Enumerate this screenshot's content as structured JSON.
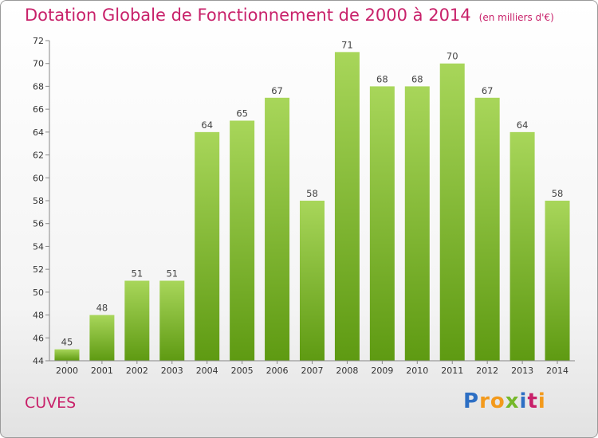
{
  "header": {
    "title": "Dotation Globale de Fonctionnement de 2000 à 2014",
    "subtitle": "(en milliers d'€)"
  },
  "footer": {
    "commune": "CUVES",
    "logo_letters": [
      "P",
      "r",
      "o",
      "x",
      "i",
      "t",
      "i"
    ],
    "logo_colors": [
      "#2d6fc4",
      "#f39a1c",
      "#f39a1c",
      "#76b82a",
      "#2d6fc4",
      "#c8216a",
      "#f39a1c"
    ]
  },
  "colors": {
    "bar_light": "#a8d65a",
    "bar_dark": "#5e9a12",
    "text_accent": "#c8216a"
  },
  "chart_data": {
    "type": "bar",
    "title": "Dotation Globale de Fonctionnement de 2000 à 2014",
    "subtitle": "(en milliers d'€)",
    "categories": [
      "2000",
      "2001",
      "2002",
      "2003",
      "2004",
      "2005",
      "2006",
      "2007",
      "2008",
      "2009",
      "2010",
      "2011",
      "2012",
      "2013",
      "2014"
    ],
    "values": [
      45,
      48,
      51,
      51,
      64,
      65,
      67,
      58,
      71,
      68,
      68,
      70,
      67,
      64,
      58
    ],
    "ylim": [
      44,
      72
    ],
    "yticks": [
      44,
      46,
      48,
      50,
      52,
      54,
      56,
      58,
      60,
      62,
      64,
      66,
      68,
      70,
      72
    ],
    "grid": false,
    "legend": "none"
  }
}
